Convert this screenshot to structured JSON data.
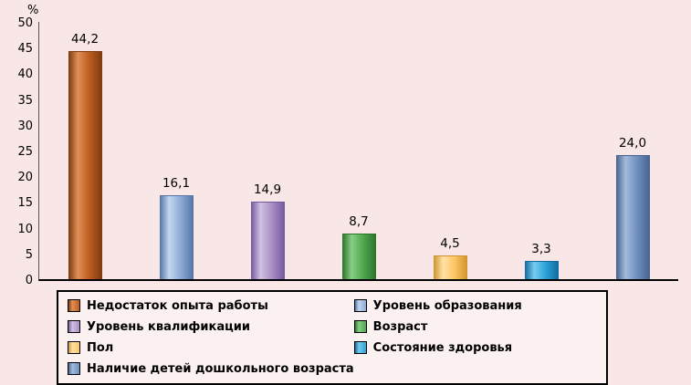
{
  "chart_data": {
    "type": "bar",
    "title": "",
    "ylabel": "%",
    "xlabel": "",
    "ylim": [
      0,
      50
    ],
    "yticks": [
      0,
      5,
      10,
      15,
      20,
      25,
      30,
      35,
      40,
      45,
      50
    ],
    "grid": false,
    "legend_position": "bottom",
    "categories": [
      "Недостаток опыта работы",
      "Уровень образования",
      "Уровень квалификации",
      "Возраст",
      "Пол",
      "Состояние здоровья",
      "Наличие детей дошкольного возраста"
    ],
    "values": [
      44.2,
      16.1,
      14.9,
      8.7,
      4.5,
      3.3,
      24.0
    ],
    "value_labels": [
      "44,2",
      "16,1",
      "14,9",
      "8,7",
      "4,5",
      "3,3",
      "24,0"
    ],
    "colors": [
      {
        "base": "#bd5c1f",
        "light": "#e09055",
        "dark": "#7c3a10"
      },
      {
        "base": "#8cabd6",
        "light": "#c3d6ee",
        "dark": "#5374a6"
      },
      {
        "base": "#a98fc6",
        "light": "#d0c1e2",
        "dark": "#73589c"
      },
      {
        "base": "#4ea64e",
        "light": "#86cf84",
        "dark": "#2c742c"
      },
      {
        "base": "#ffc566",
        "light": "#ffe2a6",
        "dark": "#cf922c"
      },
      {
        "base": "#2aa2d8",
        "light": "#77cbee",
        "dark": "#11699e"
      },
      {
        "base": "#6e8fbf",
        "light": "#a3badb",
        "dark": "#47638d"
      }
    ],
    "background_color": "#f8e7e6"
  },
  "legend": {
    "items": [
      {
        "label": "Недостаток опыта работы"
      },
      {
        "label": "Уровень образования"
      },
      {
        "label": "Уровень квалификации"
      },
      {
        "label": "Возраст"
      },
      {
        "label": "Пол"
      },
      {
        "label": "Состояние здоровья"
      },
      {
        "label": "Наличие детей дошкольного возраста"
      }
    ]
  }
}
